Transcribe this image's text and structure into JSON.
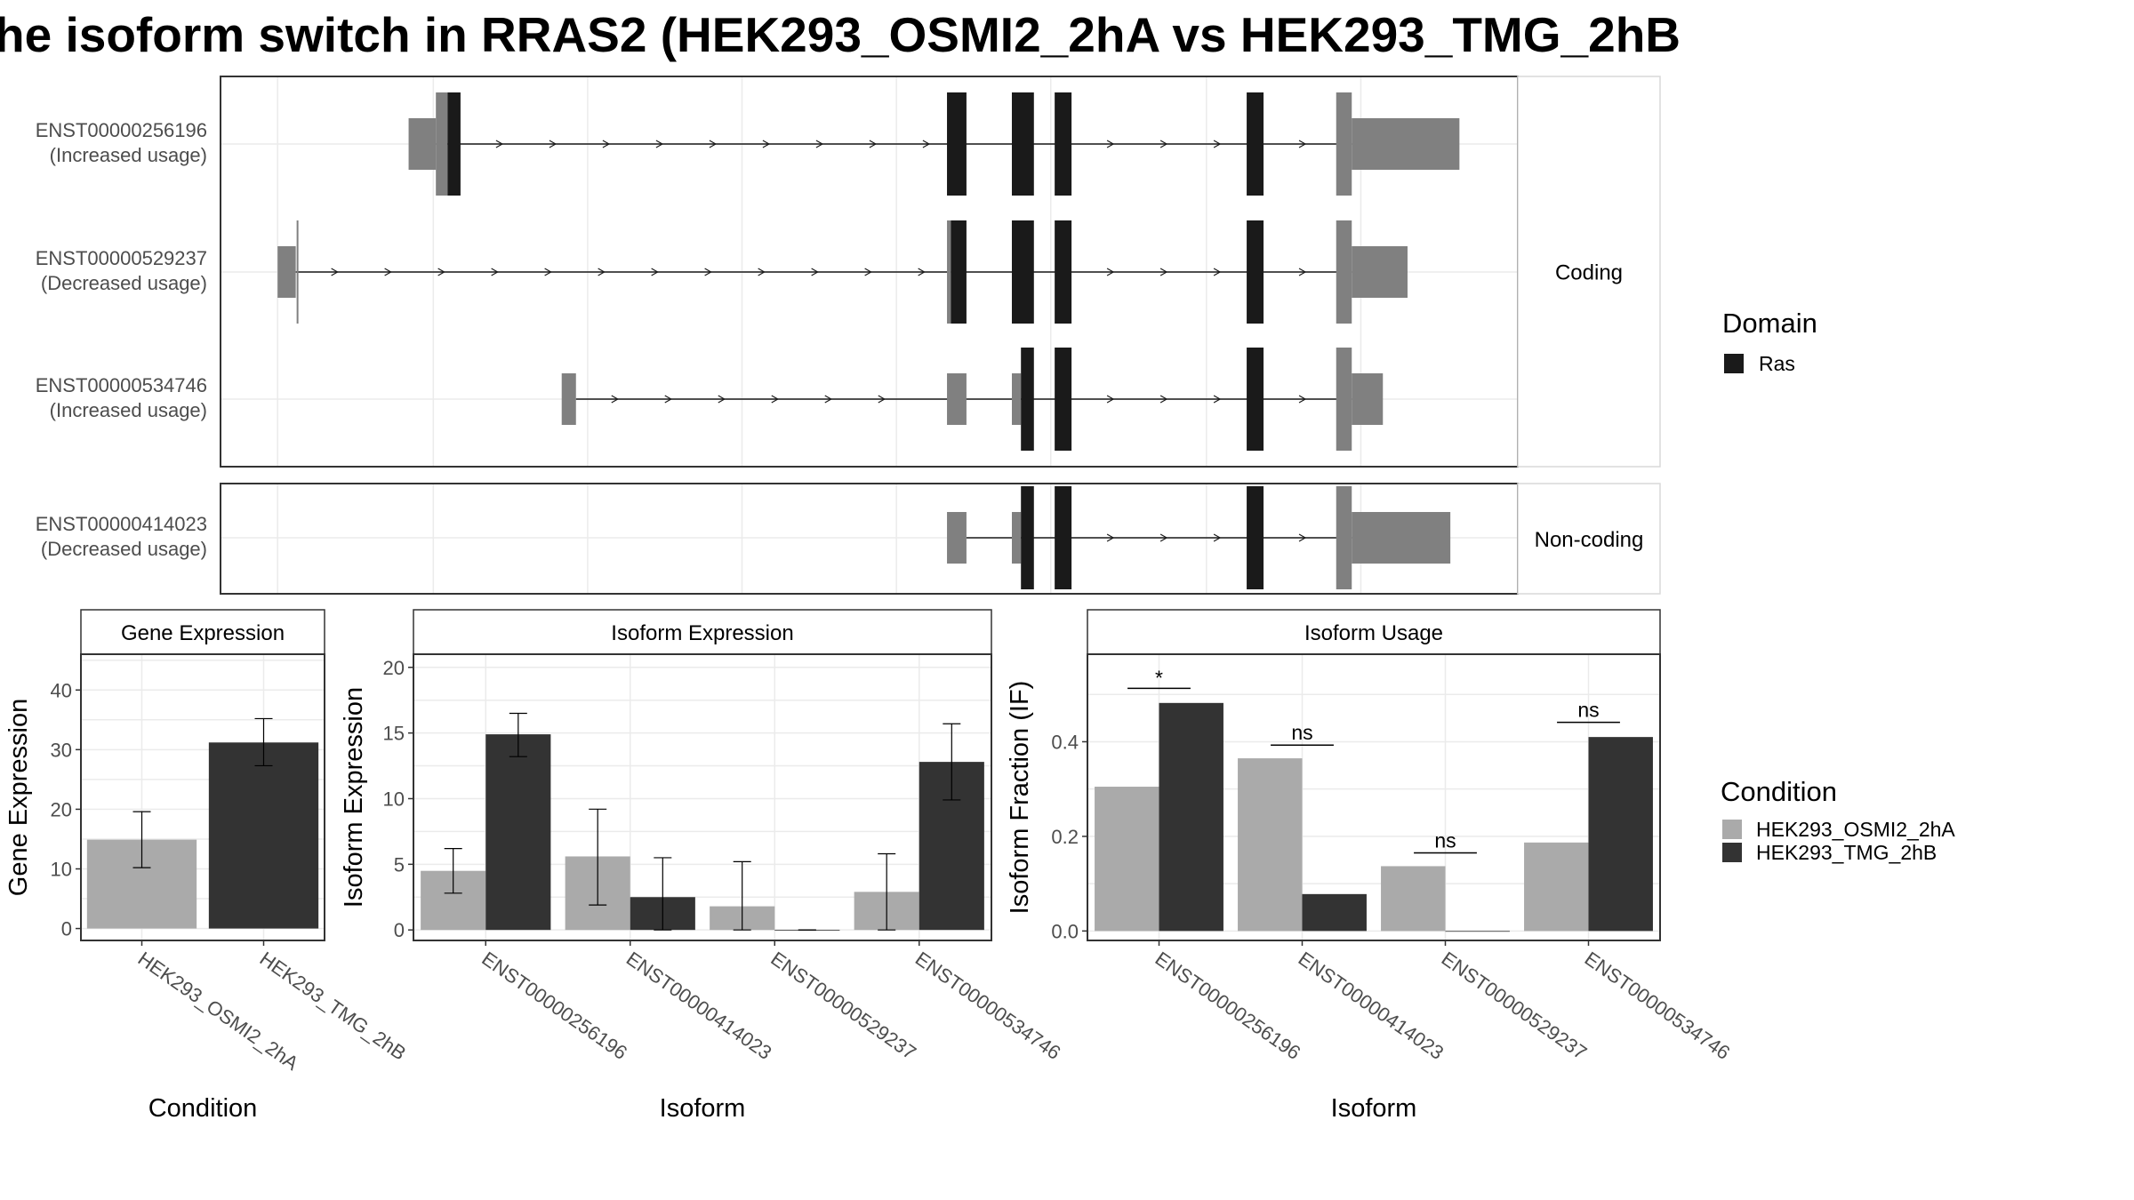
{
  "title": "he isoform switch in RRAS2 (HEK293_OSMI2_2hA vs HEK293_TMG_2hB",
  "colors": {
    "domain": "#1a1a1a",
    "exon": "#808080",
    "condition_a": "#aaaaaa",
    "condition_b": "#333333",
    "grid": "#ebebeb",
    "panel_border": "#333333",
    "strip_border": "#d9d9d9"
  },
  "chart_data": [
    {
      "type": "transcript_structure",
      "facets": [
        "Coding",
        "Non-coding"
      ],
      "transcripts": [
        {
          "facet": "Coding",
          "id": "ENST00000256196",
          "label": "ENST00000256196",
          "usage": "(Increased usage)",
          "exons": [
            {
              "start": 0.145,
              "end": 0.166,
              "type": "utr"
            },
            {
              "start": 0.166,
              "end": 0.175,
              "type": "cds"
            },
            {
              "start": 0.175,
              "end": 0.185,
              "type": "domain"
            },
            {
              "start": 0.56,
              "end": 0.575,
              "type": "domain"
            },
            {
              "start": 0.61,
              "end": 0.627,
              "type": "domain"
            },
            {
              "start": 0.643,
              "end": 0.656,
              "type": "domain"
            },
            {
              "start": 0.791,
              "end": 0.804,
              "type": "domain"
            },
            {
              "start": 0.86,
              "end": 0.872,
              "type": "cds"
            },
            {
              "start": 0.872,
              "end": 0.955,
              "type": "utr"
            }
          ]
        },
        {
          "facet": "Coding",
          "id": "ENST00000529237",
          "label": "ENST00000529237",
          "usage": "(Decreased usage)",
          "tss": 0.058,
          "exons": [
            {
              "start": 0.044,
              "end": 0.058,
              "type": "utr"
            },
            {
              "start": 0.56,
              "end": 0.563,
              "type": "cds"
            },
            {
              "start": 0.563,
              "end": 0.575,
              "type": "domain"
            },
            {
              "start": 0.61,
              "end": 0.627,
              "type": "domain"
            },
            {
              "start": 0.643,
              "end": 0.656,
              "type": "domain"
            },
            {
              "start": 0.791,
              "end": 0.804,
              "type": "domain"
            },
            {
              "start": 0.86,
              "end": 0.872,
              "type": "cds"
            },
            {
              "start": 0.872,
              "end": 0.915,
              "type": "utr"
            }
          ]
        },
        {
          "facet": "Coding",
          "id": "ENST00000534746",
          "label": "ENST00000534746",
          "usage": "(Increased usage)",
          "exons": [
            {
              "start": 0.263,
              "end": 0.274,
              "type": "utr"
            },
            {
              "start": 0.56,
              "end": 0.575,
              "type": "utr"
            },
            {
              "start": 0.61,
              "end": 0.617,
              "type": "utr"
            },
            {
              "start": 0.617,
              "end": 0.627,
              "type": "domain"
            },
            {
              "start": 0.643,
              "end": 0.656,
              "type": "domain"
            },
            {
              "start": 0.791,
              "end": 0.804,
              "type": "domain"
            },
            {
              "start": 0.86,
              "end": 0.872,
              "type": "cds"
            },
            {
              "start": 0.872,
              "end": 0.896,
              "type": "utr"
            }
          ]
        },
        {
          "facet": "Non-coding",
          "id": "ENST00000414023",
          "label": "ENST00000414023",
          "usage": "(Decreased usage)",
          "exons": [
            {
              "start": 0.56,
              "end": 0.575,
              "type": "utr"
            },
            {
              "start": 0.61,
              "end": 0.617,
              "type": "utr"
            },
            {
              "start": 0.617,
              "end": 0.627,
              "type": "domain"
            },
            {
              "start": 0.643,
              "end": 0.656,
              "type": "domain"
            },
            {
              "start": 0.791,
              "end": 0.804,
              "type": "domain"
            },
            {
              "start": 0.86,
              "end": 0.872,
              "type": "cds"
            },
            {
              "start": 0.872,
              "end": 0.948,
              "type": "utr"
            }
          ]
        }
      ]
    },
    {
      "type": "bar",
      "title": "Gene Expression",
      "xlabel": "Condition",
      "ylabel": "Gene Expression",
      "categories": [
        "HEK293_OSMI2_2hA",
        "HEK293_TMG_2hB"
      ],
      "values": [
        14.9,
        31.2
      ],
      "errors": [
        [
          10.2,
          19.6
        ],
        [
          27.3,
          35.2
        ]
      ],
      "yticks": [
        0,
        10,
        20,
        30,
        40
      ],
      "ylim": [
        -2,
        46
      ]
    },
    {
      "type": "bar",
      "title": "Isoform Expression",
      "xlabel": "Isoform",
      "ylabel": "Isoform Expression",
      "categories": [
        "ENST00000256196",
        "ENST00000414023",
        "ENST00000529237",
        "ENST00000534746"
      ],
      "series": [
        {
          "values": [
            4.5,
            5.6,
            1.8,
            2.9
          ],
          "errors": [
            [
              2.8,
              6.2
            ],
            [
              1.9,
              9.2
            ],
            [
              0,
              5.2
            ],
            [
              0,
              5.8
            ]
          ]
        },
        {
          "values": [
            14.9,
            2.5,
            0,
            12.8
          ],
          "errors": [
            [
              13.2,
              16.5
            ],
            [
              0,
              5.5
            ],
            [
              0,
              0
            ],
            [
              9.9,
              15.7
            ]
          ]
        }
      ],
      "yticks": [
        0,
        5,
        10,
        15,
        20
      ],
      "ylim": [
        -0.8,
        21
      ]
    },
    {
      "type": "bar",
      "title": "Isoform Usage",
      "xlabel": "Isoform",
      "ylabel": "Isoform Fraction (IF)",
      "categories": [
        "ENST00000256196",
        "ENST00000414023",
        "ENST00000529237",
        "ENST00000534746"
      ],
      "series": [
        {
          "values": [
            0.305,
            0.365,
            0.137,
            0.187
          ]
        },
        {
          "values": [
            0.482,
            0.078,
            0,
            0.41
          ]
        }
      ],
      "significance": [
        {
          "label": "*",
          "level": 0.513
        },
        {
          "label": "ns",
          "level": 0.393
        },
        {
          "label": "ns",
          "level": 0.165
        },
        {
          "label": "ns",
          "level": 0.441
        }
      ],
      "yticks": [
        0.0,
        0.2,
        0.4
      ],
      "ylim": [
        -0.02,
        0.585
      ]
    }
  ],
  "legend_domain": {
    "title": "Domain",
    "items": [
      {
        "label": "Ras",
        "color": "#1a1a1a"
      }
    ]
  },
  "legend_condition": {
    "title": "Condition",
    "items": [
      {
        "label": "HEK293_OSMI2_2hA",
        "color": "#aaaaaa"
      },
      {
        "label": "HEK293_TMG_2hB",
        "color": "#333333"
      }
    ]
  }
}
